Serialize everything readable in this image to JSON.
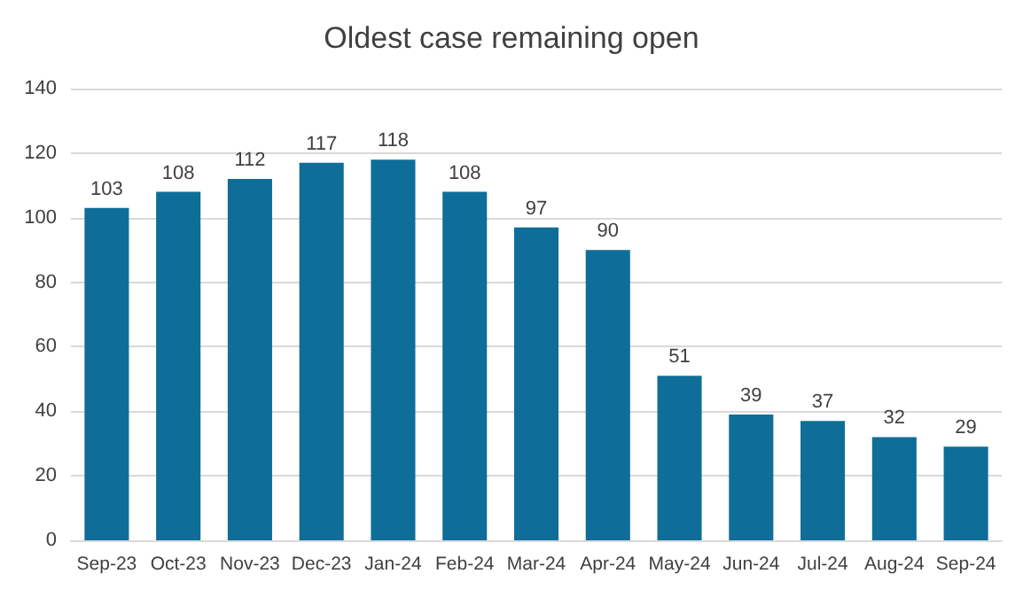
{
  "chart_data": {
    "type": "bar",
    "title": "Oldest case remaining open",
    "categories": [
      "Sep-23",
      "Oct-23",
      "Nov-23",
      "Dec-23",
      "Jan-24",
      "Feb-24",
      "Mar-24",
      "Apr-24",
      "May-24",
      "Jun-24",
      "Jul-24",
      "Aug-24",
      "Sep-24"
    ],
    "values": [
      103,
      108,
      112,
      117,
      118,
      108,
      97,
      90,
      51,
      39,
      37,
      32,
      29
    ],
    "color": "#0e6e99",
    "ylim": [
      0,
      140
    ],
    "yticks": [
      0,
      20,
      40,
      60,
      80,
      100,
      120,
      140
    ],
    "grid": "y",
    "data_labels": true
  }
}
